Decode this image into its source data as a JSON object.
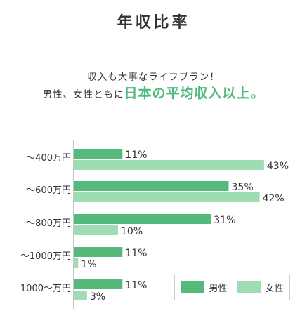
{
  "title": "年収比率",
  "subtitle_line1": "収入も大事なライフプラン！",
  "subtitle_line2_prefix": "男性、女性ともに",
  "subtitle_line2_highlight": "日本の平均収入以上。",
  "colors": {
    "male": "#55b97c",
    "female": "#9fdcb3",
    "highlight": "#52b97d",
    "axis": "#888888"
  },
  "chart_data": {
    "type": "bar",
    "orientation": "horizontal",
    "categories": [
      "～400万円",
      "～600万円",
      "～800万円",
      "～1000万円",
      "1000～万円"
    ],
    "series": [
      {
        "name": "男性",
        "values": [
          11,
          35,
          31,
          11,
          11
        ]
      },
      {
        "name": "女性",
        "values": [
          43,
          42,
          10,
          1,
          3
        ]
      }
    ],
    "value_suffix": "%",
    "xlim": [
      0,
      50
    ],
    "grid": false,
    "legend_position": "bottom-right"
  },
  "legend": {
    "male_label": "男性",
    "female_label": "女性"
  }
}
